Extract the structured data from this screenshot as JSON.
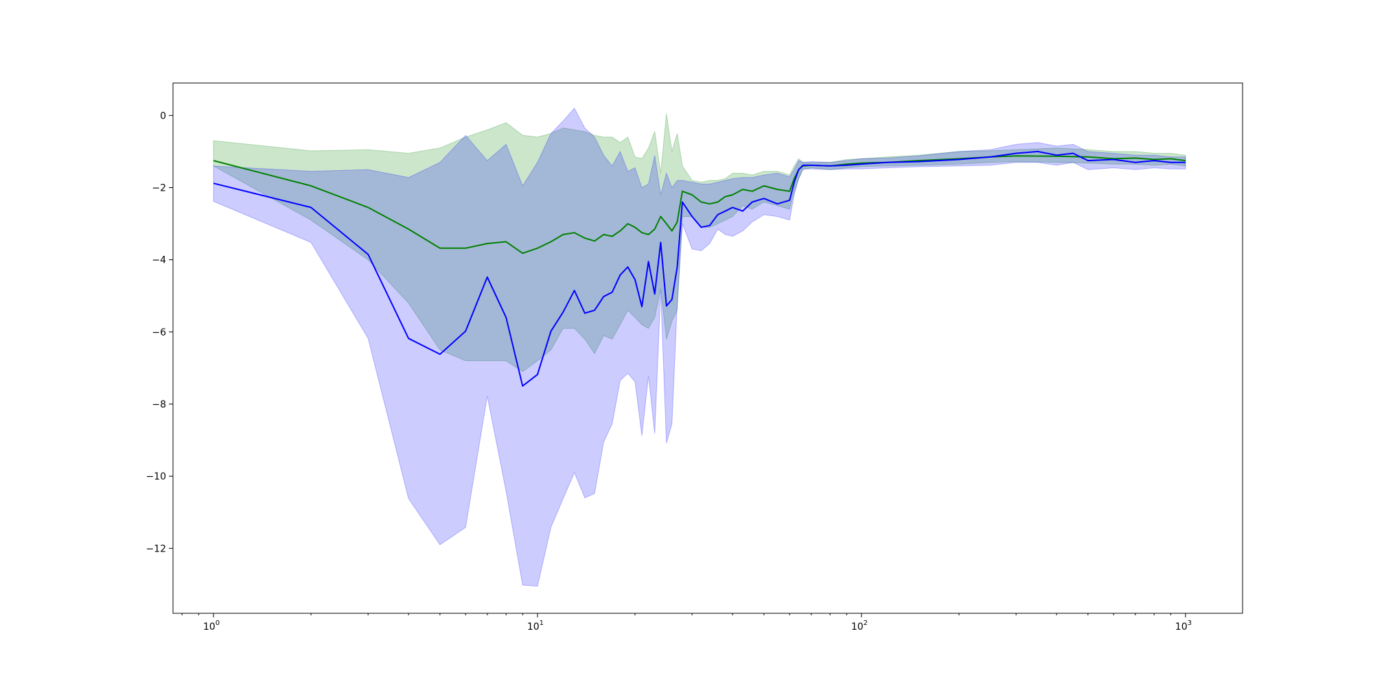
{
  "chart_data": {
    "type": "line",
    "x_scale": "log",
    "xlim": [
      0.75,
      1500
    ],
    "ylim": [
      -13.8,
      0.9
    ],
    "grid": false,
    "x_ticks": [
      {
        "value": 1,
        "base": "10",
        "exp": "0"
      },
      {
        "value": 10,
        "base": "10",
        "exp": "1"
      },
      {
        "value": 100,
        "base": "10",
        "exp": "2"
      },
      {
        "value": 1000,
        "base": "10",
        "exp": "3"
      }
    ],
    "y_ticks": [
      {
        "value": 0,
        "label": "0"
      },
      {
        "value": -2,
        "label": "−2"
      },
      {
        "value": -4,
        "label": "−4"
      },
      {
        "value": -6,
        "label": "−6"
      },
      {
        "value": -8,
        "label": "−8"
      },
      {
        "value": -10,
        "label": "−10"
      },
      {
        "value": -12,
        "label": "−12"
      }
    ],
    "series": [
      {
        "color": "#008000",
        "band_color": "#008000",
        "band_opacity": 0.2,
        "x": [
          1,
          2,
          3,
          4,
          5,
          6,
          7,
          8,
          9,
          10,
          11,
          12,
          13,
          14,
          15,
          16,
          17,
          18,
          19,
          20,
          21,
          22,
          23,
          24,
          25,
          26,
          27,
          28,
          30,
          32,
          34,
          36,
          38,
          40,
          43,
          46,
          50,
          55,
          60,
          62,
          64,
          66,
          70,
          80,
          90,
          100,
          120,
          150,
          200,
          250,
          300,
          400,
          500,
          600,
          700,
          800,
          900,
          1000
        ],
        "y": [
          -1.25,
          -1.95,
          -2.55,
          -3.15,
          -3.68,
          -3.68,
          -3.55,
          -3.5,
          -3.82,
          -3.68,
          -3.5,
          -3.3,
          -3.25,
          -3.4,
          -3.48,
          -3.3,
          -3.35,
          -3.2,
          -3.0,
          -3.1,
          -3.25,
          -3.3,
          -3.15,
          -2.8,
          -3.0,
          -3.2,
          -2.95,
          -2.1,
          -2.2,
          -2.4,
          -2.45,
          -2.4,
          -2.25,
          -2.2,
          -2.05,
          -2.1,
          -1.95,
          -2.05,
          -2.1,
          -1.75,
          -1.5,
          -1.4,
          -1.38,
          -1.4,
          -1.35,
          -1.32,
          -1.3,
          -1.25,
          -1.2,
          -1.15,
          -1.12,
          -1.13,
          -1.15,
          -1.2,
          -1.18,
          -1.22,
          -1.2,
          -1.25
        ],
        "upper": [
          -0.7,
          -0.98,
          -0.95,
          -1.05,
          -0.9,
          -0.6,
          -0.4,
          -0.2,
          -0.55,
          -0.6,
          -0.5,
          -0.35,
          -0.4,
          -0.45,
          -0.55,
          -0.6,
          -0.6,
          -0.75,
          -0.6,
          -1.15,
          -1.2,
          -0.9,
          -0.45,
          -1.6,
          0.05,
          -1.0,
          -0.5,
          -1.4,
          -1.8,
          -1.85,
          -1.8,
          -1.8,
          -1.75,
          -1.6,
          -1.6,
          -1.65,
          -1.55,
          -1.55,
          -1.65,
          -1.4,
          -1.2,
          -1.3,
          -1.3,
          -1.3,
          -1.22,
          -1.2,
          -1.15,
          -1.1,
          -1.0,
          -0.98,
          -0.95,
          -0.9,
          -0.95,
          -1.0,
          -1.0,
          -1.05,
          -1.05,
          -1.1
        ],
        "lower": [
          -1.4,
          -2.9,
          -4.0,
          -5.2,
          -6.5,
          -6.8,
          -6.8,
          -6.8,
          -7.1,
          -6.8,
          -6.5,
          -5.9,
          -5.9,
          -6.2,
          -6.6,
          -6.1,
          -6.2,
          -5.8,
          -5.4,
          -5.6,
          -5.8,
          -5.9,
          -5.6,
          -4.8,
          -6.2,
          -5.7,
          -5.4,
          -2.8,
          -2.8,
          -3.1,
          -3.1,
          -3.0,
          -2.9,
          -2.8,
          -2.5,
          -2.6,
          -2.4,
          -2.5,
          -2.6,
          -2.1,
          -1.75,
          -1.5,
          -1.45,
          -1.5,
          -1.45,
          -1.42,
          -1.4,
          -1.38,
          -1.35,
          -1.3,
          -1.28,
          -1.3,
          -1.32,
          -1.35,
          -1.35,
          -1.38,
          -1.35,
          -1.4
        ]
      },
      {
        "color": "#0000ff",
        "band_color": "#0000ff",
        "band_opacity": 0.2,
        "x": [
          1,
          2,
          3,
          4,
          5,
          6,
          7,
          8,
          9,
          10,
          11,
          12,
          13,
          14,
          15,
          16,
          17,
          18,
          19,
          20,
          21,
          22,
          23,
          24,
          25,
          26,
          27,
          28,
          30,
          32,
          34,
          36,
          38,
          40,
          43,
          46,
          50,
          55,
          60,
          62,
          64,
          66,
          70,
          80,
          90,
          100,
          120,
          150,
          200,
          250,
          300,
          350,
          400,
          450,
          500,
          600,
          700,
          800,
          900,
          1000
        ],
        "y": [
          -1.88,
          -2.55,
          -3.85,
          -6.18,
          -6.62,
          -5.98,
          -4.48,
          -5.6,
          -7.5,
          -7.18,
          -5.98,
          -5.45,
          -4.85,
          -5.48,
          -5.4,
          -5.02,
          -4.9,
          -4.42,
          -4.2,
          -4.55,
          -5.3,
          -4.05,
          -4.95,
          -3.52,
          -5.28,
          -5.1,
          -4.2,
          -2.4,
          -2.8,
          -3.1,
          -3.05,
          -2.75,
          -2.65,
          -2.55,
          -2.65,
          -2.4,
          -2.3,
          -2.45,
          -2.35,
          -1.85,
          -1.5,
          -1.38,
          -1.38,
          -1.4,
          -1.38,
          -1.35,
          -1.3,
          -1.28,
          -1.22,
          -1.15,
          -1.05,
          -1.0,
          -1.1,
          -1.05,
          -1.25,
          -1.22,
          -1.3,
          -1.25,
          -1.3,
          -1.3
        ],
        "upper": [
          -1.4,
          -1.55,
          -1.5,
          -1.72,
          -1.3,
          -0.55,
          -1.25,
          -0.8,
          -1.95,
          -1.3,
          -0.5,
          -0.15,
          0.2,
          -0.35,
          -0.6,
          -1.1,
          -1.4,
          -1.0,
          -1.55,
          -1.45,
          -2.0,
          -1.9,
          -1.1,
          -2.2,
          -1.6,
          -2.0,
          -1.8,
          -1.8,
          -1.85,
          -1.9,
          -1.9,
          -1.85,
          -1.8,
          -1.75,
          -1.72,
          -1.72,
          -1.65,
          -1.6,
          -1.7,
          -1.5,
          -1.25,
          -1.3,
          -1.28,
          -1.3,
          -1.25,
          -1.2,
          -1.18,
          -1.12,
          -1.0,
          -0.95,
          -0.8,
          -0.75,
          -0.85,
          -0.8,
          -1.0,
          -1.05,
          -1.1,
          -1.1,
          -1.15,
          -1.15
        ],
        "lower": [
          -2.38,
          -3.52,
          -6.18,
          -10.62,
          -11.9,
          -11.42,
          -7.78,
          -10.42,
          -13.02,
          -13.05,
          -11.42,
          -10.62,
          -9.9,
          -10.6,
          -10.48,
          -9.05,
          -8.55,
          -7.35,
          -7.15,
          -7.38,
          -8.88,
          -7.22,
          -8.82,
          -4.85,
          -9.08,
          -8.55,
          -5.2,
          -3.0,
          -3.7,
          -3.75,
          -3.55,
          -3.15,
          -3.3,
          -3.35,
          -3.2,
          -2.95,
          -2.75,
          -2.8,
          -2.9,
          -2.2,
          -1.75,
          -1.48,
          -1.48,
          -1.5,
          -1.48,
          -1.48,
          -1.45,
          -1.42,
          -1.4,
          -1.38,
          -1.3,
          -1.3,
          -1.38,
          -1.3,
          -1.5,
          -1.45,
          -1.5,
          -1.45,
          -1.48,
          -1.48
        ]
      }
    ]
  }
}
